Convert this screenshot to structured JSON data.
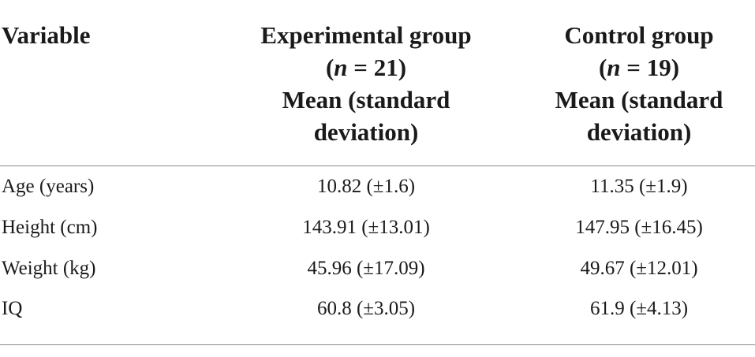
{
  "table": {
    "header": {
      "variable": "Variable",
      "experimental": {
        "name": "Experimental group",
        "n_open": "(",
        "n_italic": "n",
        "n_rest": " = 21)",
        "stat_line1": "Mean (standard",
        "stat_line2": "deviation)"
      },
      "control": {
        "name": "Control group",
        "n_open": "(",
        "n_italic": "n",
        "n_rest": " = 19)",
        "stat_line1": "Mean (standard",
        "stat_line2": "deviation)"
      }
    },
    "rows": [
      {
        "variable": "Age (years)",
        "experimental": "10.82 (±1.6)",
        "control": "11.35 (±1.9)"
      },
      {
        "variable": "Height (cm)",
        "experimental": "143.91 (±13.01)",
        "control": "147.95 (±16.45)"
      },
      {
        "variable": "Weight (kg)",
        "experimental": "45.96 (±17.09)",
        "control": "49.67 (±12.01)"
      },
      {
        "variable": "IQ",
        "experimental": "60.8 (±3.05)",
        "control": "61.9 (±4.13)"
      }
    ]
  }
}
